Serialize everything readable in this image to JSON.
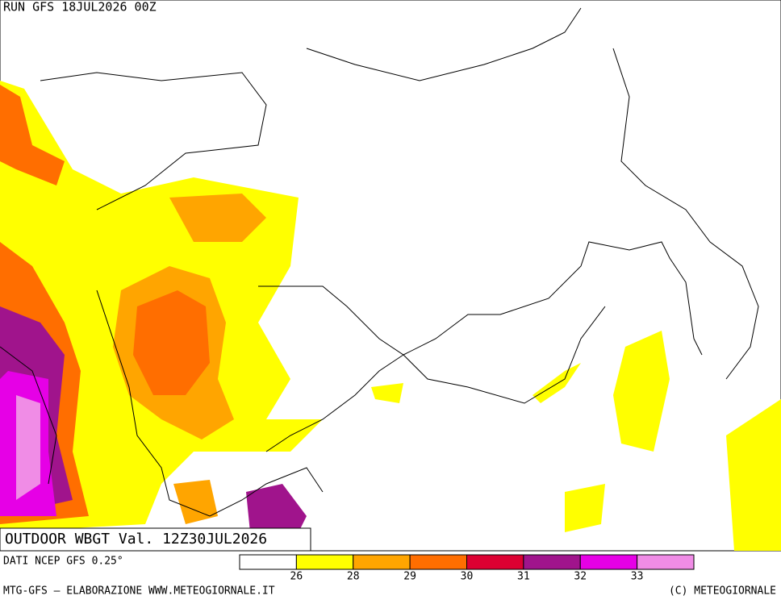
{
  "header": {
    "run": "RUN GFS 18JUL2026 00Z"
  },
  "map": {
    "title": "OUTDOOR WBGT Val. 12Z30JUL2026"
  },
  "legend": {
    "source": "DATI NCEP GFS 0.25°",
    "colors": [
      "#ffffff",
      "#ffff00",
      "#ffa500",
      "#ff6e00",
      "#dc0032",
      "#a0148c",
      "#e600e6",
      "#f08ce6"
    ],
    "ticks": [
      26,
      28,
      29,
      30,
      31,
      32,
      33
    ]
  },
  "footer": {
    "left": "MTG-GFS — ELABORAZIONE WWW.METEOGIORNALE.IT",
    "right": "(C) METEOGIORNALE"
  }
}
